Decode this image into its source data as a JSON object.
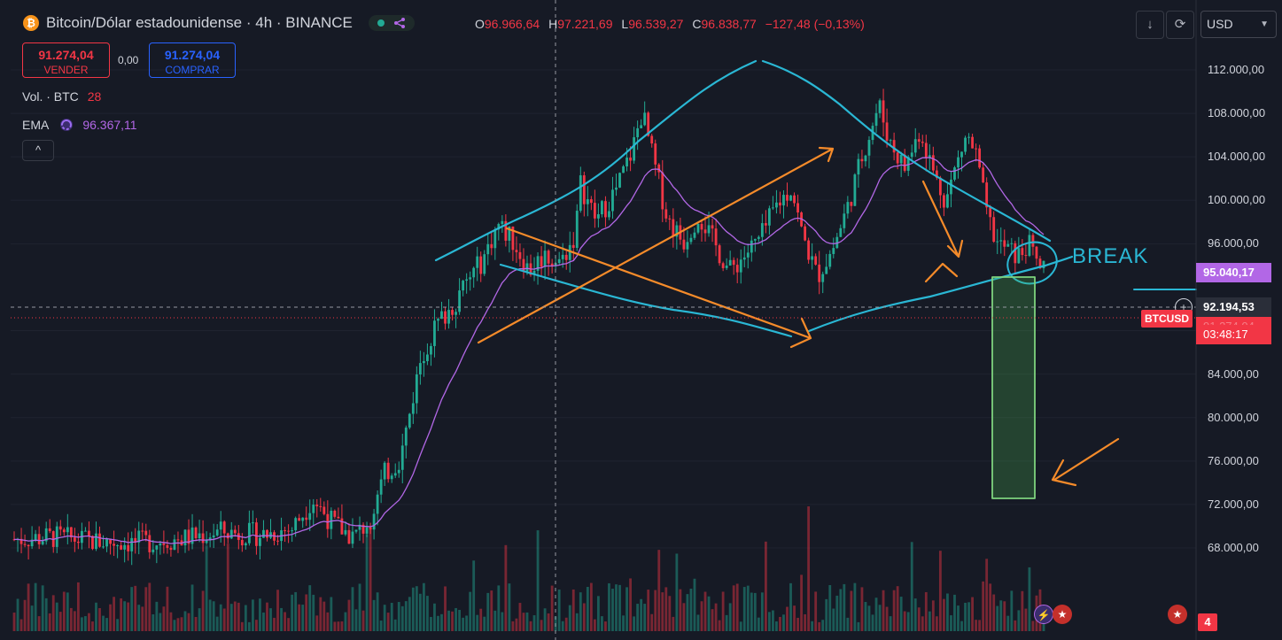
{
  "header": {
    "title": "Bitcoin/Dólar estadounidense · 4h · BINANCE",
    "logo_symbol": "₿",
    "ohlc": [
      {
        "key": "O",
        "value": "96.966,64"
      },
      {
        "key": "H",
        "value": "97.221,69"
      },
      {
        "key": "L",
        "value": "96.539,27"
      },
      {
        "key": "C",
        "value": "96.838,77"
      }
    ],
    "change": "−127,48 (−0,13%)"
  },
  "trade": {
    "sell_price": "91.274,04",
    "sell_label": "VENDER",
    "spread": "0,00",
    "buy_price": "91.274,04",
    "buy_label": "COMPRAR"
  },
  "legend": {
    "vol_label": "Vol. · BTC",
    "vol_value": "28",
    "ema_label": "EMA",
    "ema_value": "96.367,11",
    "collapse_icon": "^"
  },
  "toolbar": {
    "currency": "USD"
  },
  "chart_data": {
    "type": "candlestick",
    "symbol": "BTCUSD",
    "timeframe": "4h",
    "exchange": "BINANCE",
    "ylim": [
      66000,
      115000
    ],
    "y_ticks": [
      "112.000,00",
      "108.000,00",
      "104.000,00",
      "100.000,00",
      "96.000,00",
      "88.000,00",
      "84.000,00",
      "80.000,00",
      "76.000,00",
      "72.000,00",
      "68.000,00"
    ],
    "y_tick_values": [
      112000,
      108000,
      104000,
      100000,
      96000,
      88000,
      84000,
      80000,
      76000,
      72000,
      68000
    ],
    "price_path": [
      [
        0,
        68800
      ],
      [
        0.04,
        69000
      ],
      [
        0.08,
        68600
      ],
      [
        0.12,
        68500
      ],
      [
        0.16,
        68800
      ],
      [
        0.2,
        69500
      ],
      [
        0.24,
        69200
      ],
      [
        0.27,
        69800
      ],
      [
        0.29,
        72500
      ],
      [
        0.31,
        70200
      ],
      [
        0.33,
        69000
      ],
      [
        0.345,
        70500
      ],
      [
        0.36,
        74800
      ],
      [
        0.375,
        76200
      ],
      [
        0.385,
        80800
      ],
      [
        0.395,
        85500
      ],
      [
        0.41,
        88500
      ],
      [
        0.425,
        90200
      ],
      [
        0.44,
        92500
      ],
      [
        0.455,
        94500
      ],
      [
        0.47,
        97800
      ],
      [
        0.485,
        96200
      ],
      [
        0.5,
        93500
      ],
      [
        0.515,
        95000
      ],
      [
        0.53,
        94200
      ],
      [
        0.545,
        96800
      ],
      [
        0.55,
        101500
      ],
      [
        0.565,
        98200
      ],
      [
        0.585,
        101000
      ],
      [
        0.6,
        104500
      ],
      [
        0.61,
        108200
      ],
      [
        0.62,
        104000
      ],
      [
        0.635,
        98200
      ],
      [
        0.65,
        96200
      ],
      [
        0.665,
        98800
      ],
      [
        0.68,
        96000
      ],
      [
        0.695,
        93500
      ],
      [
        0.71,
        95000
      ],
      [
        0.725,
        96500
      ],
      [
        0.74,
        99500
      ],
      [
        0.755,
        101200
      ],
      [
        0.765,
        97000
      ],
      [
        0.78,
        93000
      ],
      [
        0.795,
        95500
      ],
      [
        0.81,
        99500
      ],
      [
        0.825,
        104500
      ],
      [
        0.84,
        108800
      ],
      [
        0.85,
        105500
      ],
      [
        0.865,
        103000
      ],
      [
        0.88,
        106500
      ],
      [
        0.895,
        102000
      ],
      [
        0.905,
        100000
      ],
      [
        0.915,
        103200
      ],
      [
        0.925,
        106000
      ],
      [
        0.935,
        104000
      ],
      [
        0.945,
        98500
      ],
      [
        0.955,
        96000
      ],
      [
        0.965,
        95500
      ],
      [
        0.975,
        94800
      ],
      [
        0.985,
        96000
      ],
      [
        0.995,
        94000
      ],
      [
        1.0,
        93500
      ]
    ],
    "ema_label": "EMA",
    "ema_value": 96367.11,
    "last_price": {
      "value": "92.194,53",
      "symbol": "BTCUSD",
      "countdown": "03:48:17",
      "partial": "91.274,04"
    },
    "marker_price": "95.040,17",
    "annotations": [
      {
        "text": "BREAK",
        "color": "#2ab7d4"
      }
    ],
    "volume_badge": "4"
  }
}
